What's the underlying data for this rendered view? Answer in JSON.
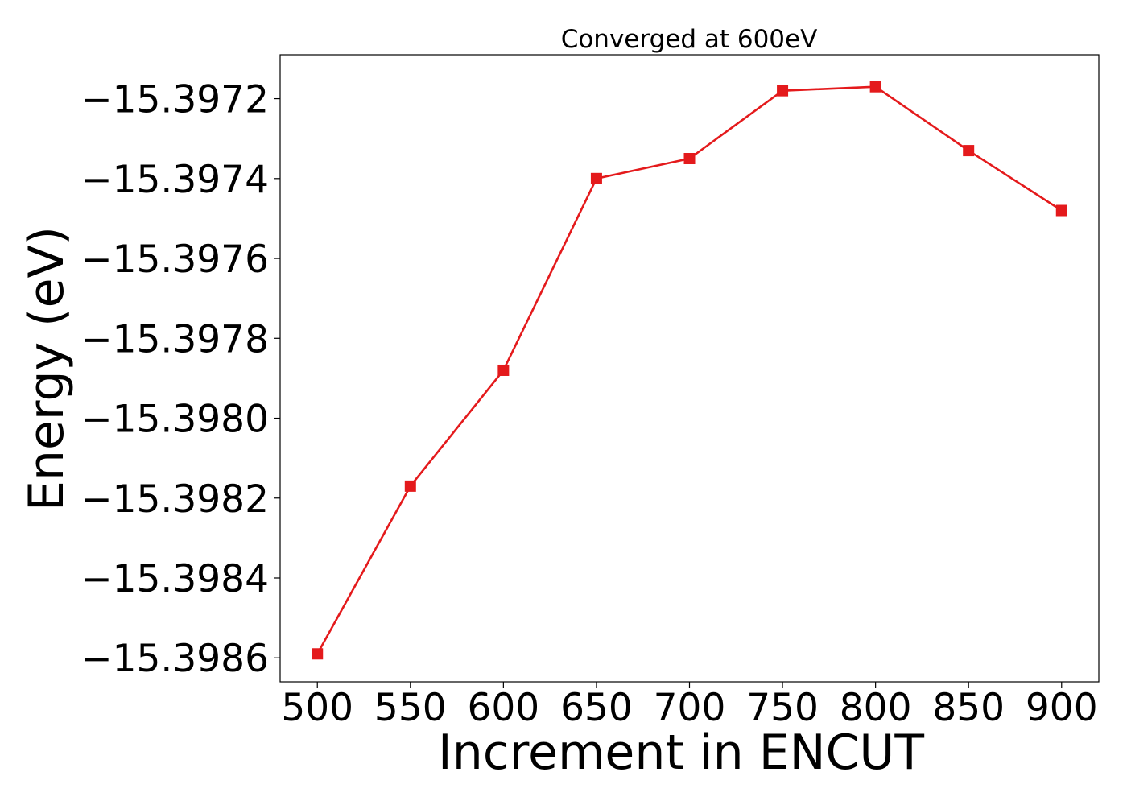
{
  "chart_data": {
    "type": "line",
    "title": "Converged at 600eV",
    "xlabel": "Increment in ENCUT",
    "ylabel": "Energy (eV)",
    "x": [
      500,
      550,
      600,
      650,
      700,
      750,
      800,
      850,
      900
    ],
    "series": [
      {
        "values": [
          -15.39859,
          -15.39817,
          -15.39788,
          -15.3974,
          -15.39735,
          -15.39718,
          -15.39717,
          -15.39733,
          -15.39748
        ],
        "color": "#e41a1c",
        "marker": "square"
      }
    ],
    "xticks": [
      "500",
      "550",
      "600",
      "650",
      "700",
      "750",
      "800",
      "850",
      "900"
    ],
    "yticks": [
      "−15.3972",
      "−15.3974",
      "−15.3976",
      "−15.3978",
      "−15.3980",
      "−15.3982",
      "−15.3984",
      "−15.3986"
    ],
    "ytick_values": [
      -15.3972,
      -15.3974,
      -15.3976,
      -15.3978,
      -15.398,
      -15.3982,
      -15.3984,
      -15.3986
    ],
    "xlim": [
      480,
      920
    ],
    "ylim": [
      -15.39866,
      -15.39709
    ],
    "grid": false,
    "legend": "none"
  }
}
